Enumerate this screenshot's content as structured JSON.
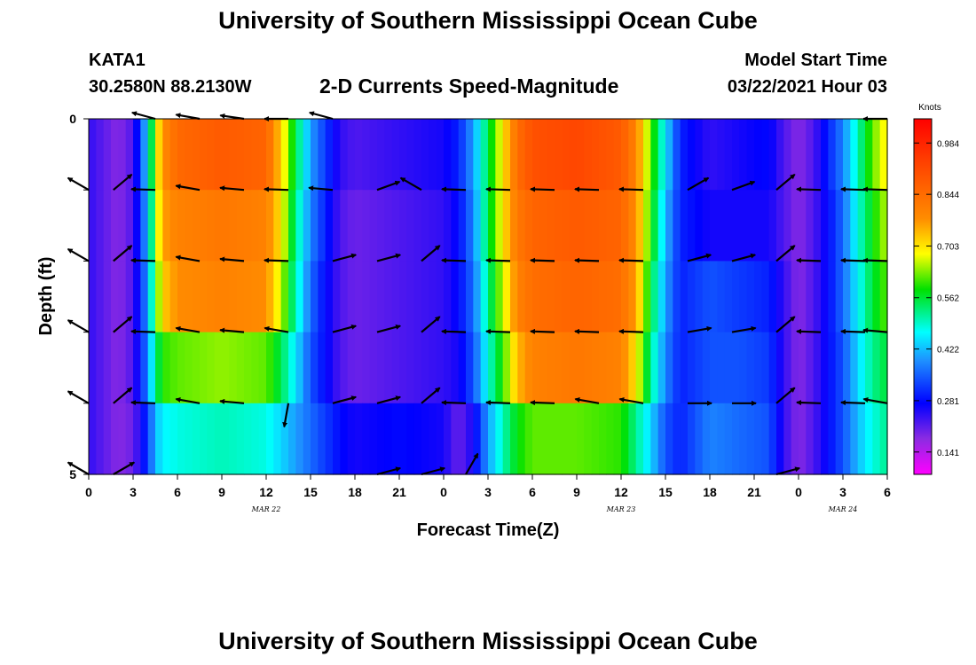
{
  "header": {
    "title_top": "University of Southern Mississippi Ocean Cube",
    "title_bottom": "University of Southern Mississippi Ocean Cube",
    "station_id": "KATA1",
    "station_coords": "30.2580N 88.2130W",
    "plot_title": "2-D Currents Speed-Magnitude",
    "model_start_label": "Model Start Time",
    "model_start_value": "03/22/2021 Hour 03"
  },
  "chart_data": {
    "type": "heatmap",
    "title": "2-D Currents Speed-Magnitude",
    "xlabel": "Forecast Time(Z)",
    "ylabel": "Depth (ft)",
    "xlim": [
      0,
      54
    ],
    "ylim": [
      0,
      5
    ],
    "x_ticks": [
      "0",
      "3",
      "6",
      "9",
      "12",
      "15",
      "18",
      "21",
      "0",
      "3",
      "6",
      "9",
      "12",
      "15",
      "18",
      "21",
      "0",
      "3",
      "6"
    ],
    "y_ticks": [
      "0",
      "5"
    ],
    "date_labels": [
      {
        "text": "MAR  22",
        "hour": 12
      },
      {
        "text": "MAR  23",
        "hour": 36
      },
      {
        "text": "MAR  24",
        "hour": 51
      }
    ],
    "colorbar": {
      "unit": "Knots",
      "min": 0.08,
      "max": 1.05,
      "tick_values": [
        "0.984",
        "0.844",
        "0.703",
        "0.562",
        "0.422",
        "0.281",
        "0.141"
      ]
    },
    "depth_layers": [
      0.5,
      1.5,
      2.5,
      3.5,
      4.5
    ],
    "speed_keyframes_hours": [
      0,
      2,
      3,
      4,
      4.5,
      5,
      6,
      9,
      12,
      13,
      14,
      15,
      16,
      17,
      18,
      21,
      24,
      25,
      26,
      27,
      28,
      29,
      30,
      33,
      36,
      37,
      38,
      39,
      40,
      42,
      44,
      46,
      47,
      48,
      49,
      50,
      51,
      52,
      53,
      54
    ],
    "speed_keyframes": [
      [
        0.24,
        0.18,
        0.22,
        0.45,
        0.65,
        0.78,
        0.85,
        0.88,
        0.86,
        0.72,
        0.55,
        0.4,
        0.32,
        0.24,
        0.22,
        0.24,
        0.26,
        0.3,
        0.4,
        0.55,
        0.7,
        0.84,
        0.9,
        0.92,
        0.88,
        0.8,
        0.62,
        0.45,
        0.3,
        0.24,
        0.26,
        0.28,
        0.22,
        0.18,
        0.22,
        0.3,
        0.38,
        0.5,
        0.62,
        0.7
      ],
      [
        0.24,
        0.18,
        0.22,
        0.42,
        0.62,
        0.76,
        0.8,
        0.82,
        0.8,
        0.7,
        0.52,
        0.38,
        0.3,
        0.22,
        0.2,
        0.22,
        0.24,
        0.28,
        0.38,
        0.55,
        0.7,
        0.82,
        0.86,
        0.88,
        0.86,
        0.78,
        0.6,
        0.42,
        0.3,
        0.26,
        0.26,
        0.26,
        0.22,
        0.18,
        0.22,
        0.28,
        0.36,
        0.48,
        0.58,
        0.66
      ],
      [
        0.24,
        0.18,
        0.22,
        0.4,
        0.58,
        0.72,
        0.78,
        0.8,
        0.78,
        0.66,
        0.5,
        0.36,
        0.28,
        0.22,
        0.2,
        0.22,
        0.24,
        0.28,
        0.36,
        0.52,
        0.66,
        0.8,
        0.84,
        0.86,
        0.84,
        0.76,
        0.56,
        0.4,
        0.3,
        0.34,
        0.32,
        0.3,
        0.24,
        0.18,
        0.22,
        0.28,
        0.36,
        0.46,
        0.56,
        0.62
      ],
      [
        0.24,
        0.18,
        0.22,
        0.38,
        0.52,
        0.6,
        0.62,
        0.64,
        0.62,
        0.55,
        0.45,
        0.34,
        0.28,
        0.22,
        0.2,
        0.22,
        0.24,
        0.26,
        0.34,
        0.48,
        0.6,
        0.74,
        0.8,
        0.82,
        0.8,
        0.7,
        0.52,
        0.38,
        0.3,
        0.34,
        0.34,
        0.32,
        0.24,
        0.18,
        0.22,
        0.28,
        0.34,
        0.44,
        0.52,
        0.56
      ],
      [
        0.24,
        0.18,
        0.2,
        0.32,
        0.42,
        0.46,
        0.48,
        0.5,
        0.48,
        0.44,
        0.4,
        0.36,
        0.32,
        0.28,
        0.26,
        0.28,
        0.26,
        0.2,
        0.26,
        0.4,
        0.5,
        0.58,
        0.62,
        0.62,
        0.6,
        0.52,
        0.44,
        0.34,
        0.3,
        0.38,
        0.36,
        0.34,
        0.24,
        0.18,
        0.22,
        0.28,
        0.34,
        0.42,
        0.48,
        0.52
      ],
      [
        0.18,
        0.14,
        0.16,
        0.22,
        0.34,
        0.36,
        0.36,
        0.34,
        0.32,
        0.3,
        0.3,
        0.34,
        0.36,
        0.36,
        0.34,
        0.34,
        0.22,
        0.14,
        0.12,
        0.2,
        0.34,
        0.4,
        0.44,
        0.44,
        0.42,
        0.4,
        0.36,
        0.3,
        0.26,
        0.4,
        0.36,
        0.34,
        0.24,
        0.18,
        0.2,
        0.26,
        0.3,
        0.36,
        0.42,
        0.46
      ]
    ],
    "arrow_hours": [
      0,
      1.67,
      4.5,
      7.5,
      10.5,
      13.5,
      16.5,
      19.5,
      22.5,
      25.5,
      28.5,
      31.5,
      34.5,
      37.5,
      40.5,
      43.5,
      46.5,
      49.5,
      52.5,
      54
    ],
    "arrow_depths": [
      0,
      1,
      2,
      3,
      4,
      5
    ],
    "arrows": [
      [
        null,
        null,
        -165,
        -170,
        -172,
        180,
        -165,
        null,
        null,
        null,
        null,
        null,
        null,
        null,
        null,
        null,
        null,
        null,
        null,
        180
      ],
      [
        -150,
        -40,
        -178,
        -170,
        -175,
        -178,
        -175,
        -20,
        -150,
        -178,
        -178,
        -178,
        -178,
        -178,
        -30,
        -20,
        -40,
        -178,
        -178,
        -178
      ],
      [
        -150,
        -40,
        -178,
        -170,
        -175,
        -178,
        -15,
        -15,
        -40,
        -178,
        -178,
        -178,
        -178,
        -178,
        -15,
        -15,
        -40,
        -178,
        -178,
        -178
      ],
      [
        -150,
        -40,
        -178,
        -170,
        -175,
        -170,
        -15,
        -15,
        -40,
        -178,
        -178,
        -178,
        -178,
        -178,
        -10,
        -10,
        -40,
        -178,
        -178,
        -175
      ],
      [
        -150,
        -40,
        -178,
        -170,
        -175,
        100,
        -15,
        -15,
        -40,
        -178,
        -178,
        -178,
        -170,
        -170,
        0,
        0,
        -40,
        -178,
        -178,
        -170
      ],
      [
        -150,
        -30,
        null,
        null,
        null,
        null,
        null,
        -15,
        -15,
        -60,
        null,
        null,
        null,
        null,
        null,
        null,
        -15,
        null,
        null,
        null
      ]
    ]
  }
}
